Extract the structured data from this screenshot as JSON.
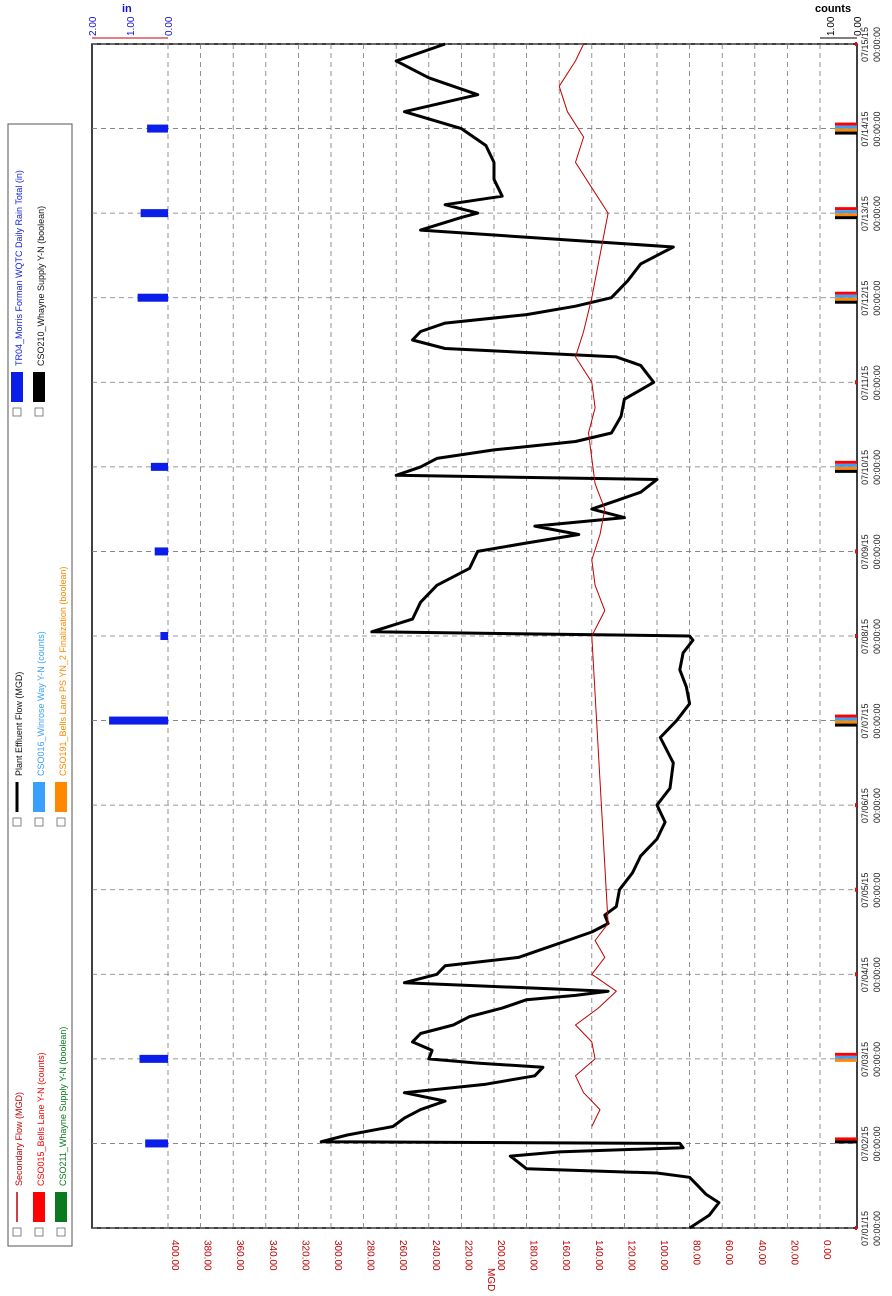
{
  "colors": {
    "plant_flow": "#000000",
    "secondary_flow": "#c00000",
    "rain": "#0b1de8",
    "cso015": "#ff0000",
    "cso016": "#3aa0ff",
    "cso191": "#ff8800",
    "cso210": "#000000",
    "cso211": "#0a7a1e",
    "axis_red": "#c00000",
    "axis_blue": "#1010e0"
  },
  "chart_data": {
    "type": "line",
    "orientation": "rotated-90-clockwise",
    "grid": true,
    "mgd_axis": {
      "label": "MGD",
      "ticks": [
        "400.00",
        "380.00",
        "360.00",
        "340.00",
        "320.00",
        "300.00",
        "280.00",
        "260.00",
        "240.00",
        "220.00",
        "200.00",
        "180.00",
        "160.00",
        "140.00",
        "120.00",
        "100.00",
        "80.00",
        "60.00",
        "40.00",
        "20.00",
        "0.00"
      ],
      "range": [
        0,
        400
      ]
    },
    "rain_axis": {
      "label": "in",
      "ticks": [
        "2.00",
        "1.00",
        "0.00"
      ],
      "range": [
        0,
        2
      ]
    },
    "counts_axis": {
      "label": "counts",
      "ticks": [
        "1.00",
        "0.00"
      ],
      "range": [
        0,
        1
      ]
    },
    "time_axis": {
      "ticks": [
        {
          "date": "07/01/15",
          "time": "00:00:00"
        },
        {
          "date": "07/02/15",
          "time": "00:00:00"
        },
        {
          "date": "07/03/15",
          "time": "00:00:00"
        },
        {
          "date": "07/04/15",
          "time": "00:00:00"
        },
        {
          "date": "07/05/15",
          "time": "00:00:00"
        },
        {
          "date": "07/06/15",
          "time": "00:00:00"
        },
        {
          "date": "07/07/15",
          "time": "00:00:00"
        },
        {
          "date": "07/08/15",
          "time": "00:00:00"
        },
        {
          "date": "07/09/15",
          "time": "00:00:00"
        },
        {
          "date": "07/10/15",
          "time": "00:00:00"
        },
        {
          "date": "07/11/15",
          "time": "00:00:00"
        },
        {
          "date": "07/12/15",
          "time": "00:00:00"
        },
        {
          "date": "07/13/15",
          "time": "00:00:00"
        },
        {
          "date": "07/14/15",
          "time": "00:00:00"
        },
        {
          "date": "07/15/15",
          "time": "00:00:00"
        }
      ],
      "range_days": [
        0,
        14
      ]
    },
    "legend": [
      {
        "key": "secondary_flow",
        "label": "Secondary Flow (MGD)",
        "style": "line",
        "color": "#c00000"
      },
      {
        "key": "cso015",
        "label": "CSO015_Bells Lane Y-N (counts)",
        "style": "bar",
        "color": "#ff0000"
      },
      {
        "key": "cso211",
        "label": "CSO211_Whayne Supply Y-N (boolean)",
        "style": "bar",
        "color": "#0a7a1e"
      },
      {
        "key": "plant_flow",
        "label": "Plant Effluent Flow (MGD)",
        "style": "line",
        "color": "#000000"
      },
      {
        "key": "cso016",
        "label": "CSO016_Winrose Way Y-N (counts)",
        "style": "bar",
        "color": "#3aa0ff"
      },
      {
        "key": "cso191",
        "label": "CSO191_Bells Lane PS YN_2 Finalization (boolean)",
        "style": "bar",
        "color": "#ff8800"
      },
      {
        "key": "rain",
        "label": "TR04_Morris Forman WQTC Daily Rain Total (in)",
        "style": "bar",
        "color": "#0b1de8"
      },
      {
        "key": "cso210",
        "label": "CSO210_Whayne Supply Y-N (boolean)",
        "style": "bar",
        "color": "#000000"
      }
    ],
    "series": [
      {
        "name": "Plant Effluent Flow (MGD)",
        "key": "plant_flow",
        "day": [
          0.0,
          0.15,
          0.3,
          0.4,
          0.5,
          0.6,
          0.65,
          0.7,
          0.85,
          0.9,
          0.95,
          1.0,
          1.02,
          1.1,
          1.2,
          1.3,
          1.4,
          1.5,
          1.6,
          1.7,
          1.8,
          1.9,
          1.95,
          2.0,
          2.1,
          2.2,
          2.3,
          2.4,
          2.5,
          2.6,
          2.7,
          2.75,
          2.8,
          2.9,
          3.0,
          3.1,
          3.2,
          3.3,
          3.4,
          3.5,
          3.6,
          3.7,
          3.8,
          4.0,
          4.2,
          4.4,
          4.6,
          4.8,
          5.0,
          5.2,
          5.5,
          5.8,
          6.0,
          6.2,
          6.4,
          6.6,
          6.8,
          6.95,
          7.0,
          7.05,
          7.2,
          7.4,
          7.6,
          7.8,
          8.0,
          8.1,
          8.2,
          8.3,
          8.4,
          8.5,
          8.6,
          8.7,
          8.85,
          8.9,
          9.0,
          9.1,
          9.2,
          9.3,
          9.4,
          9.5,
          9.6,
          9.8,
          10.0,
          10.2,
          10.3,
          10.4,
          10.5,
          10.6,
          10.7,
          10.8,
          10.9,
          11.0,
          11.2,
          11.4,
          11.6,
          11.8,
          11.95,
          12.0,
          12.1,
          12.2,
          12.4,
          12.6,
          12.8,
          13.0,
          13.2,
          13.4,
          13.6,
          13.8,
          14.0
        ],
        "mgd": [
          80,
          68,
          62,
          70,
          75,
          80,
          100,
          180,
          190,
          160,
          84,
          86,
          306,
          290,
          262,
          255,
          245,
          230,
          255,
          205,
          175,
          170,
          210,
          240,
          238,
          250,
          245,
          225,
          215,
          195,
          180,
          150,
          130,
          255,
          235,
          230,
          185,
          170,
          155,
          140,
          130,
          132,
          125,
          123,
          115,
          110,
          100,
          95,
          100,
          92,
          90,
          98,
          88,
          80,
          82,
          86,
          84,
          78,
          80,
          275,
          250,
          245,
          235,
          215,
          210,
          180,
          148,
          175,
          120,
          140,
          125,
          110,
          100,
          260,
          245,
          235,
          200,
          150,
          128,
          125,
          122,
          120,
          102,
          110,
          125,
          230,
          250,
          245,
          230,
          180,
          150,
          128,
          118,
          110,
          90,
          245,
          220,
          210,
          230,
          195,
          200,
          200,
          205,
          220,
          255,
          210,
          240,
          260,
          230
        ]
      },
      {
        "name": "Secondary Flow (MGD)",
        "key": "secondary_flow",
        "day": [
          1.2,
          1.4,
          1.6,
          1.8,
          2.0,
          2.2,
          2.4,
          2.6,
          2.8,
          3.0,
          3.2,
          3.4,
          3.6,
          7.0,
          7.3,
          7.6,
          7.9,
          8.2,
          8.5,
          8.8,
          9.1,
          9.4,
          9.7,
          10.0,
          10.3,
          10.6,
          11.0,
          12.0,
          12.3,
          12.6,
          12.9,
          13.2,
          13.5,
          13.8,
          14.0
        ],
        "mgd": [
          140,
          135,
          145,
          150,
          138,
          140,
          150,
          136,
          125,
          140,
          132,
          138,
          130,
          140,
          132,
          138,
          140,
          135,
          132,
          138,
          140,
          142,
          138,
          140,
          150,
          145,
          140,
          130,
          140,
          150,
          145,
          155,
          160,
          150,
          145
        ]
      }
    ],
    "rain_bars": {
      "name": "TR04_Morris Forman WQTC Daily Rain Total (in)",
      "day": [
        1,
        2,
        6,
        7,
        8,
        9,
        11,
        12,
        13
      ],
      "inches": [
        0.6,
        0.75,
        1.55,
        0.2,
        0.35,
        0.45,
        0.8,
        0.72,
        0.55
      ]
    },
    "cso_events": {
      "days": [
        1,
        2,
        6,
        9,
        11,
        12,
        13
      ],
      "cso015": [
        1,
        1,
        1,
        1,
        1,
        1,
        1
      ],
      "cso016": [
        0,
        1,
        1,
        1,
        1,
        1,
        1
      ],
      "cso191": [
        0,
        1,
        1,
        1,
        1,
        1,
        1
      ],
      "cso210": [
        1,
        0,
        1,
        1,
        1,
        1,
        1
      ],
      "cso211": [
        0,
        0,
        0,
        0,
        0,
        0,
        0
      ]
    }
  }
}
